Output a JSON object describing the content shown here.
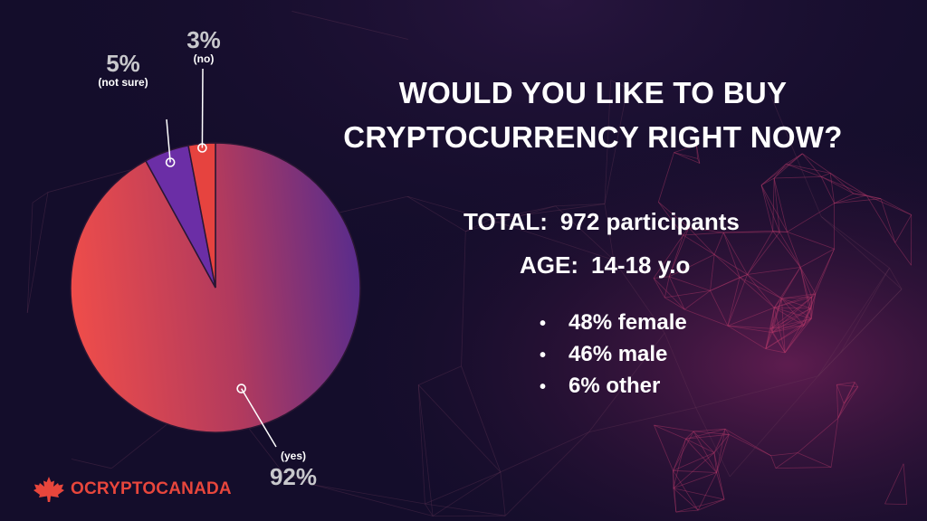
{
  "question": {
    "line1": "WOULD YOU LIKE TO BUY",
    "line2": "CRYPTOCURRENCY RIGHT NOW?"
  },
  "stats": {
    "total_label": "TOTAL:",
    "total_value": "972 participants",
    "age_label": "AGE:",
    "age_value": "14-18 y.o"
  },
  "demographics": [
    "48% female",
    "46% male",
    "6% other"
  ],
  "logo_text": "OCRYPTOCANADA",
  "colors": {
    "background": "#140d2b",
    "yes_slice_start": "#ef4d4a",
    "yes_slice_end": "#5a2c8c",
    "not_sure_slice": "#6b2ea6",
    "no_slice": "#e6433f",
    "brand": "#e8463c"
  },
  "chart_data": {
    "type": "pie",
    "slices": [
      {
        "label": "(yes)",
        "value": 92,
        "value_label": "92%"
      },
      {
        "label": "(not sure)",
        "value": 5,
        "value_label": "5%"
      },
      {
        "label": "(no)",
        "value": 3,
        "value_label": "3%"
      }
    ]
  }
}
